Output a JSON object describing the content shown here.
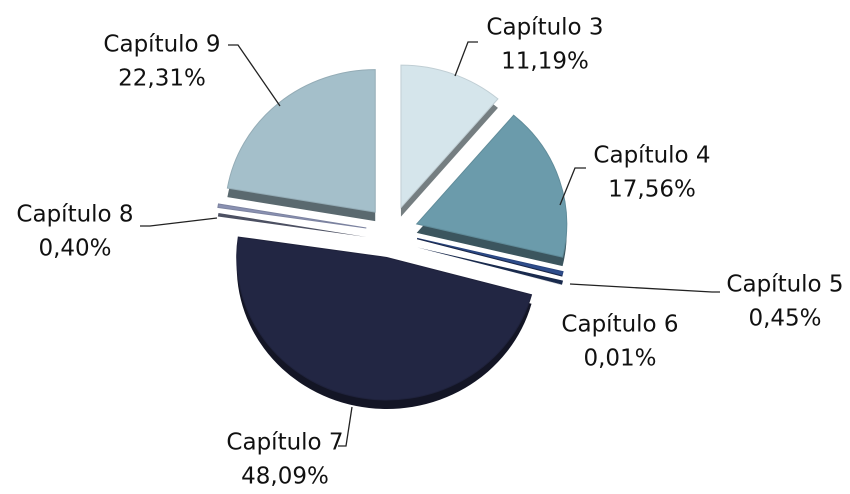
{
  "chart_data": {
    "type": "pie",
    "categories": [
      "Capítulo 3",
      "Capítulo 4",
      "Capítulo 5",
      "Capítulo 6",
      "Capítulo 7",
      "Capítulo 8",
      "Capítulo 9"
    ],
    "values": [
      11.19,
      17.56,
      0.45,
      0.01,
      48.09,
      0.4,
      22.31
    ],
    "value_labels": [
      "11,19%",
      "17,56%",
      "0,45%",
      "0,01%",
      "48,09%",
      "0,40%",
      "22,31%"
    ],
    "colors": [
      "#d5e5eb",
      "#6b9bab",
      "#2e4d8c",
      "#1c2a50",
      "#222643",
      "#8a91b2",
      "#a4bfca"
    ]
  }
}
